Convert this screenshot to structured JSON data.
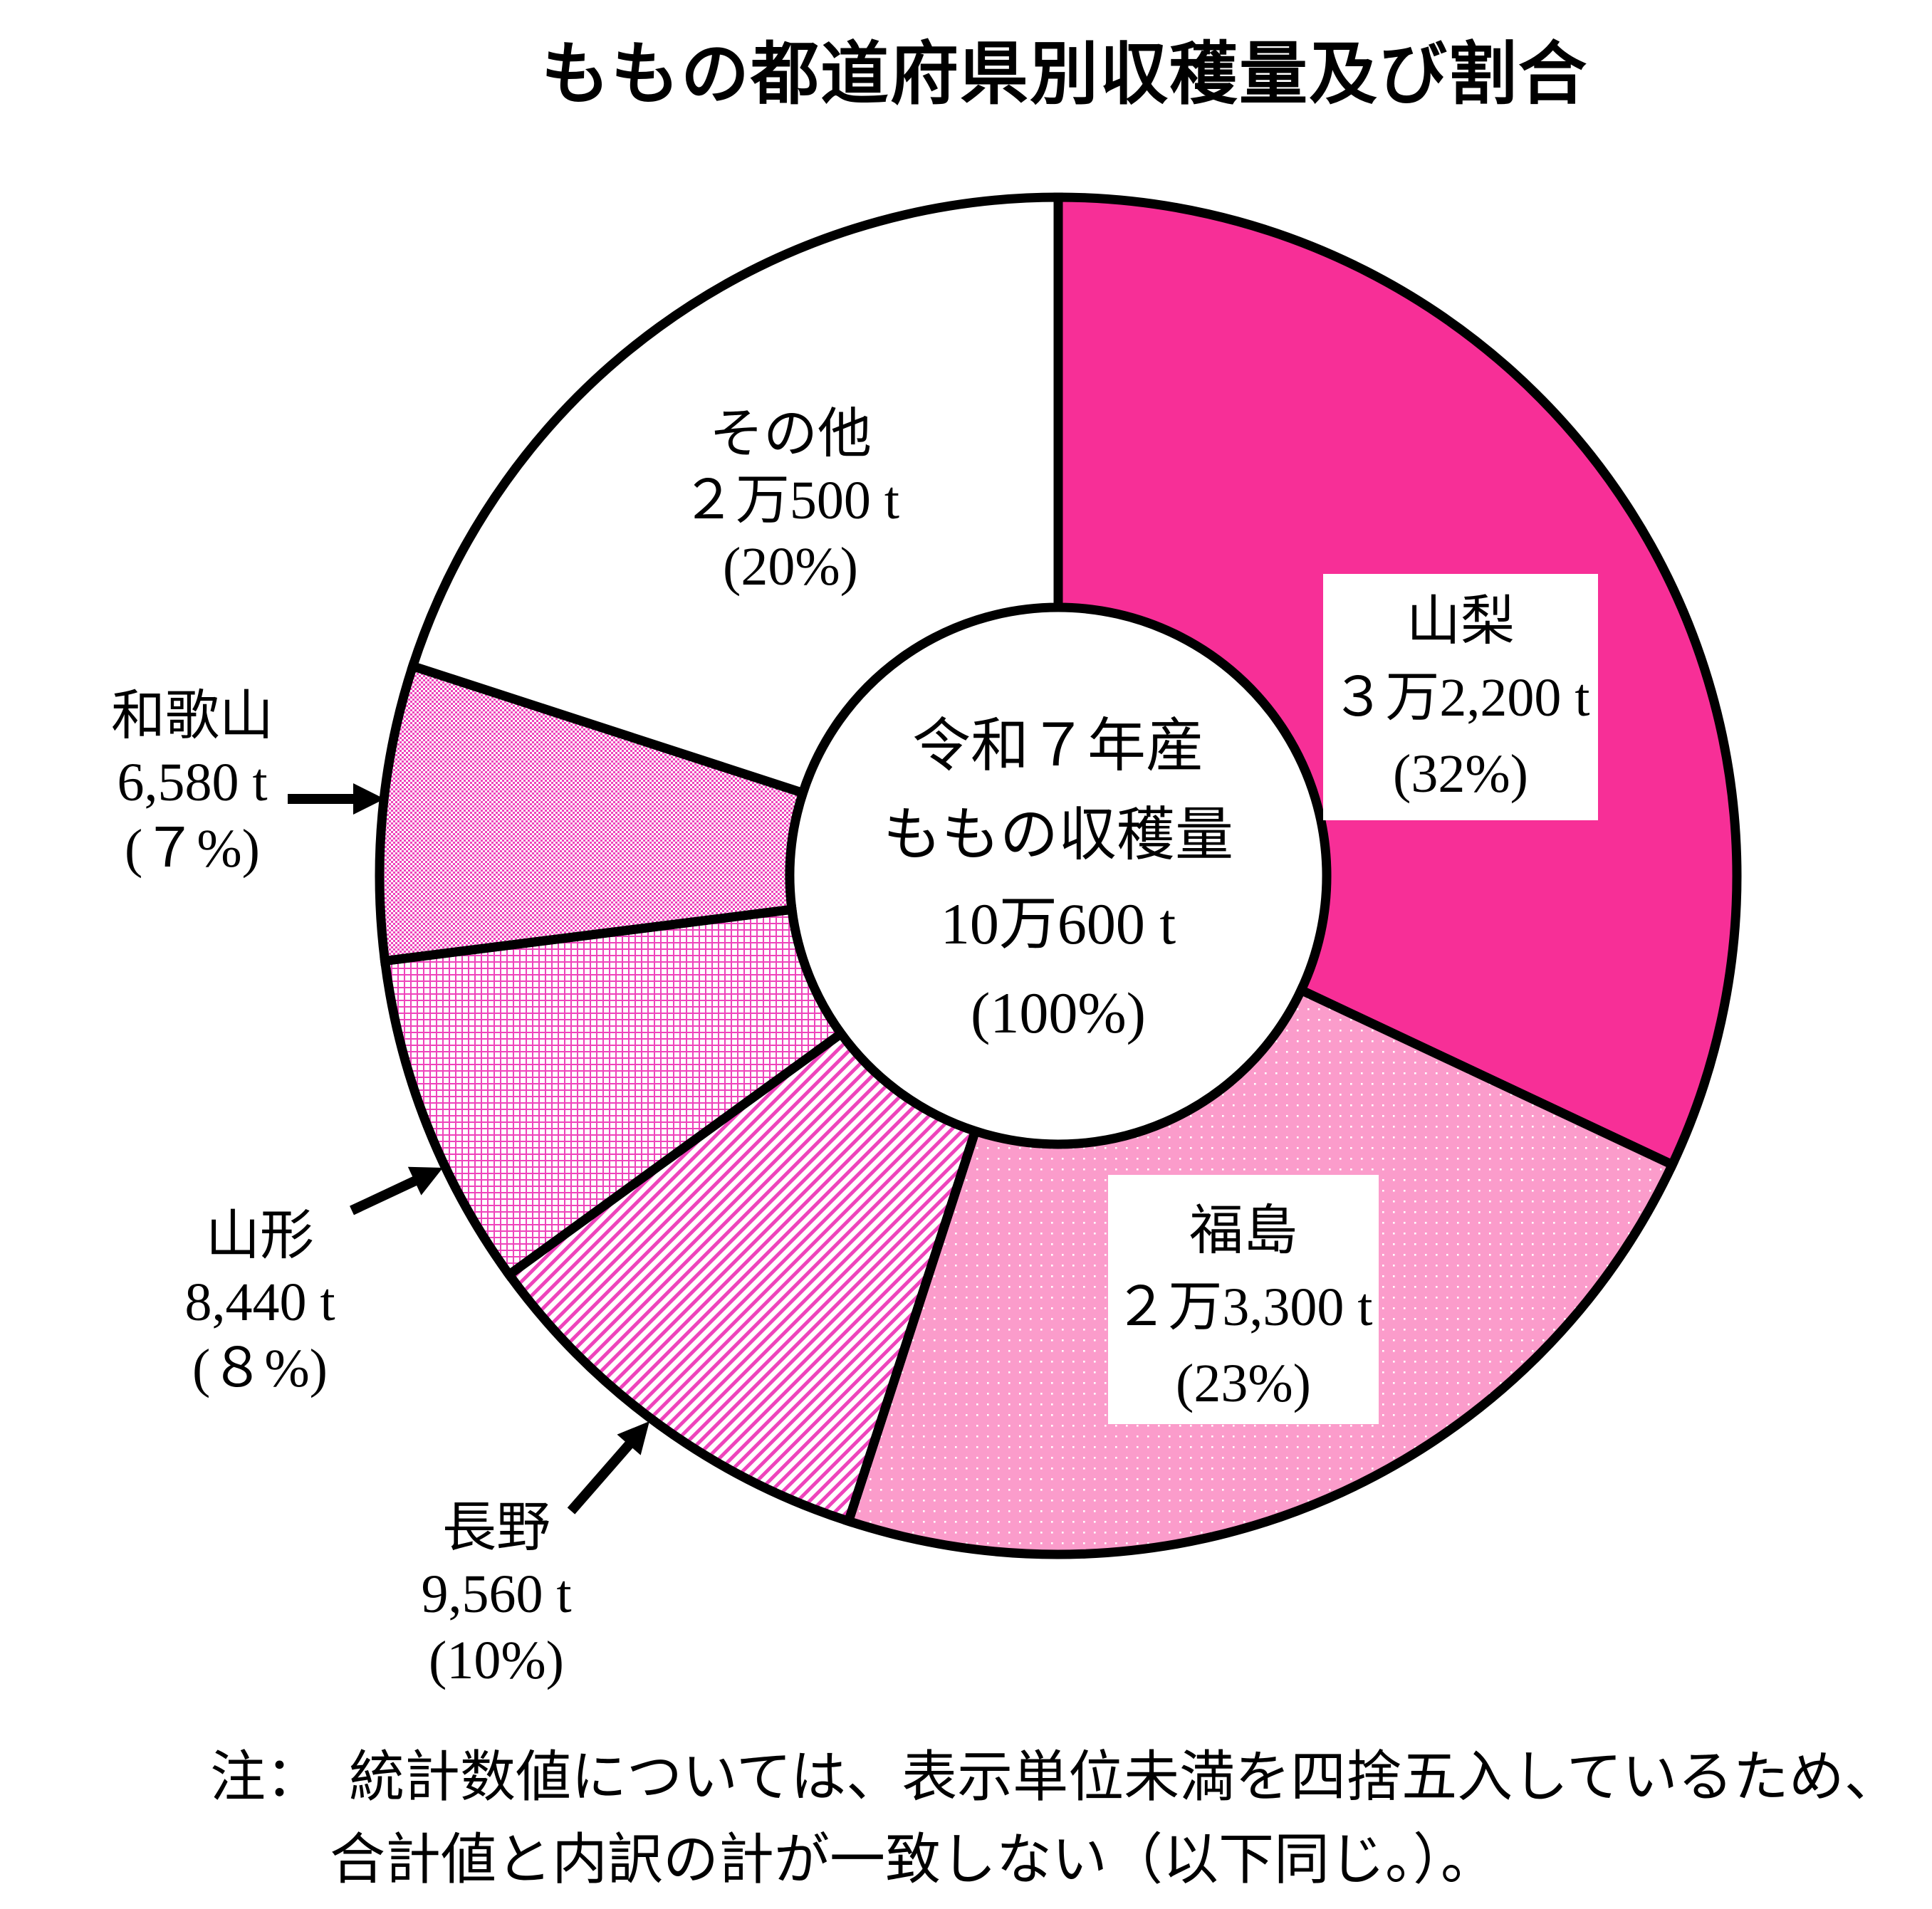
{
  "title": "ももの都道府県別収穫量及び割合",
  "center_label": {
    "line1": "令和７年産",
    "line2": "ももの収穫量",
    "line3": "10万600 t",
    "line4": "(100%)"
  },
  "note": {
    "line1": "注：　統計数値については、表示単位未満を四捨五入しているため、",
    "line2": "合計値と内訳の計が一致しない（以下同じ。）。"
  },
  "chart_data": {
    "type": "pie",
    "subtype": "donut",
    "title": "ももの都道府県別収穫量及び割合",
    "unit": "t",
    "direction": "clockwise",
    "start_angle_deg": 0,
    "outline_color": "#000000",
    "background_color": "#FFFFFF",
    "total": {
      "era_label": "令和７年産",
      "name": "ももの収穫量",
      "value": 100600,
      "value_label": "10万600 t",
      "percent": 100,
      "percent_label": "(100%)"
    },
    "slices": [
      {
        "id": "yamanashi",
        "name": "山梨",
        "value": 32200,
        "value_label": "３万2,200 t",
        "percent": 32,
        "percent_label": "(32%)",
        "fill_style": "solid",
        "color": "#F72F97"
      },
      {
        "id": "fukushima",
        "name": "福島",
        "value": 23300,
        "value_label": "２万3,300 t",
        "percent": 23,
        "percent_label": "(23%)",
        "fill_style": "white-dots-on-pink",
        "color": "#FB9CCB"
      },
      {
        "id": "nagano",
        "name": "長野",
        "value": 9560,
        "value_label": "9,560 t",
        "percent": 10,
        "percent_label": "(10%)",
        "fill_style": "diagonal-stripes",
        "color": "#EE44BB"
      },
      {
        "id": "yamagata",
        "name": "山形",
        "value": 8440,
        "value_label": "8,440 t",
        "percent": 8,
        "percent_label": "(８%)",
        "fill_style": "grid",
        "color": "#EE44BB"
      },
      {
        "id": "wakayama",
        "name": "和歌山",
        "value": 6580,
        "value_label": "6,580 t",
        "percent": 7,
        "percent_label": "(７%)",
        "fill_style": "checker",
        "color": "#EE44BB"
      },
      {
        "id": "sonota",
        "name": "その他",
        "value": 20500,
        "value_label": "２万500 t",
        "percent": 20,
        "percent_label": "(20%)",
        "fill_style": "white",
        "color": "#FFFFFF"
      }
    ]
  }
}
